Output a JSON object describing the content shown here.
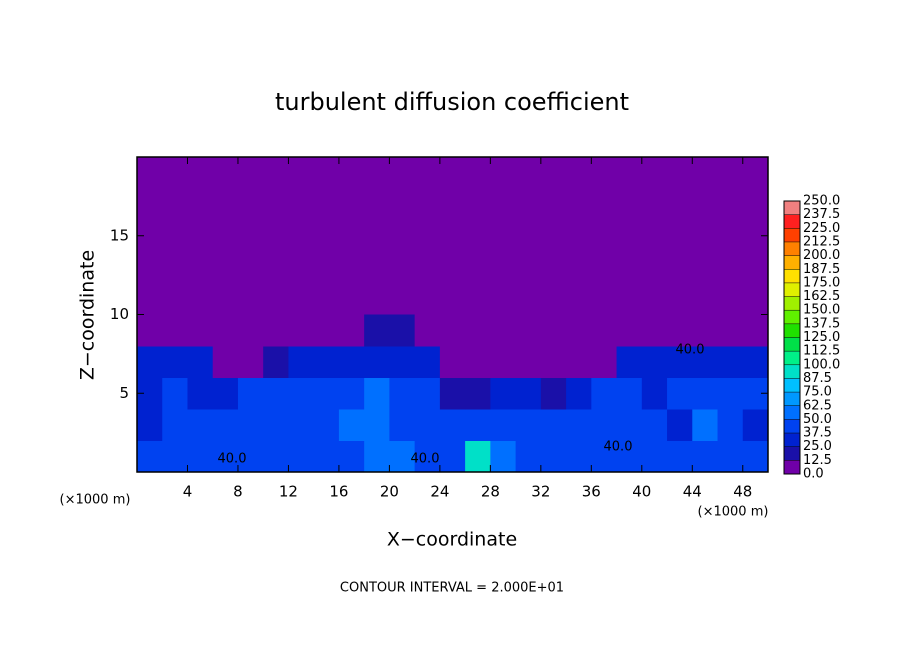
{
  "chart_data": {
    "type": "heatmap",
    "title": "turbulent diffusion coefficient",
    "x_label": "X−coordinate",
    "y_label": "Z−coordinate",
    "x_unit": "(×1000 m)",
    "y_unit": "(×1000 m)",
    "footer": "CONTOUR INTERVAL = 2.000E+01",
    "contour_labels": [
      "40.0",
      "40.0",
      "40.0",
      "40.0"
    ],
    "xlim": [
      0,
      50
    ],
    "ylim": [
      0,
      20
    ],
    "xticks": [
      4,
      8,
      12,
      16,
      20,
      24,
      28,
      32,
      36,
      40,
      44,
      48
    ],
    "yticks": [
      5,
      10,
      15
    ],
    "x": [
      1,
      3,
      5,
      7,
      9,
      11,
      13,
      15,
      17,
      19,
      21,
      23,
      25,
      27,
      29,
      31,
      33,
      35,
      37,
      39,
      41,
      43,
      45,
      47,
      49
    ],
    "y": [
      1,
      3,
      5,
      7,
      9
    ],
    "z": [
      [
        40,
        40,
        40,
        40,
        40,
        40,
        40,
        40,
        45,
        60,
        50,
        40,
        40,
        90,
        50,
        40,
        40,
        40,
        40,
        40,
        40,
        40,
        45,
        45,
        40
      ],
      [
        35,
        40,
        40,
        40,
        40,
        40,
        40,
        45,
        55,
        55,
        45,
        40,
        40,
        40,
        45,
        40,
        40,
        40,
        40,
        40,
        40,
        35,
        50,
        45,
        35
      ],
      [
        35,
        40,
        35,
        35,
        40,
        40,
        40,
        40,
        45,
        50,
        45,
        40,
        15,
        20,
        35,
        30,
        20,
        25,
        40,
        40,
        35,
        40,
        45,
        45,
        40
      ],
      [
        30,
        30,
        30,
        10,
        10,
        15,
        30,
        35,
        35,
        35,
        35,
        35,
        10,
        8,
        8,
        8,
        8,
        8,
        10,
        25,
        30,
        30,
        35,
        35,
        35
      ],
      [
        3,
        3,
        3,
        3,
        3,
        3,
        3,
        3,
        5,
        20,
        20,
        10,
        3,
        3,
        3,
        3,
        3,
        3,
        3,
        3,
        3,
        3,
        3,
        3,
        3
      ]
    ],
    "levels": [
      {
        "value": 0,
        "label": "0.0"
      },
      {
        "value": 12.5,
        "label": "12.5"
      },
      {
        "value": 25,
        "label": "25.0"
      },
      {
        "value": 37.5,
        "label": "37.5"
      },
      {
        "value": 50,
        "label": "50.0"
      },
      {
        "value": 62.5,
        "label": "62.5"
      },
      {
        "value": 75,
        "label": "75.0"
      },
      {
        "value": 87.5,
        "label": "87.5"
      },
      {
        "value": 100,
        "label": "100.0"
      },
      {
        "value": 112.5,
        "label": "112.5"
      },
      {
        "value": 125,
        "label": "125.0"
      },
      {
        "value": 137.5,
        "label": "137.5"
      },
      {
        "value": 150,
        "label": "150.0"
      },
      {
        "value": 162.5,
        "label": "162.5"
      },
      {
        "value": 175,
        "label": "175.0"
      },
      {
        "value": 187.5,
        "label": "187.5"
      },
      {
        "value": 200,
        "label": "200.0"
      },
      {
        "value": 212.5,
        "label": "212.5"
      },
      {
        "value": 225,
        "label": "225.0"
      },
      {
        "value": 237.5,
        "label": "237.5"
      },
      {
        "value": 250,
        "label": "250.0"
      }
    ],
    "colors": [
      "#7000a8",
      "#1a10a8",
      "#0022d0",
      "#0042f0",
      "#0070ff",
      "#0098ff",
      "#00c0ff",
      "#00e0c8",
      "#00f088",
      "#00e048",
      "#20e000",
      "#60f000",
      "#a0f000",
      "#e0f000",
      "#ffe000",
      "#ffb000",
      "#ff8000",
      "#ff4000",
      "#ff2020",
      "#f08080"
    ]
  }
}
